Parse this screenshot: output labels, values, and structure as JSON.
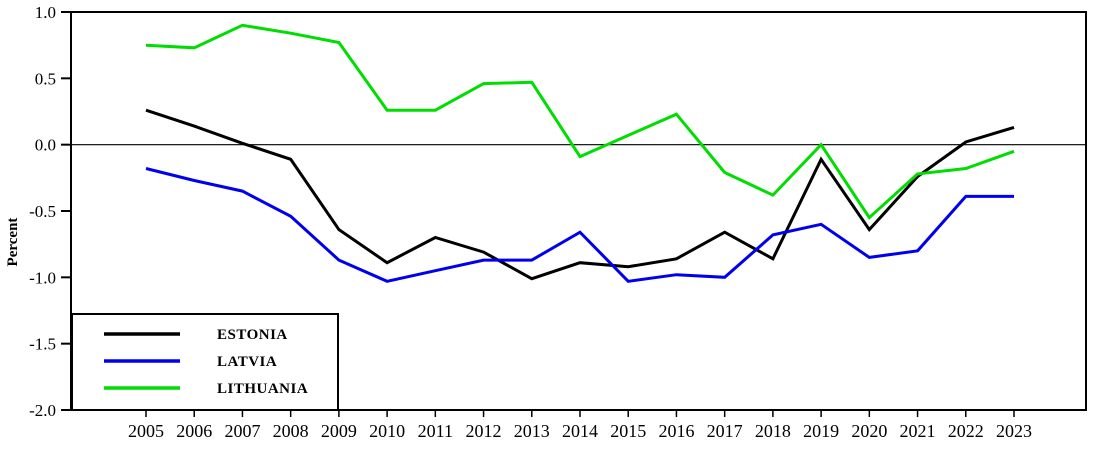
{
  "chart_data": {
    "type": "line",
    "ylabel": "Percent",
    "x_years": [
      "2005",
      "2006",
      "2007",
      "2008",
      "2009",
      "2010",
      "2011",
      "2012",
      "2013",
      "2014",
      "2015",
      "2016",
      "2017",
      "2018",
      "2019",
      "2020",
      "2021",
      "2022",
      "2023"
    ],
    "ylim": [
      -2.0,
      1.0
    ],
    "ytick_labels": [
      "1.0",
      "0.5",
      "0.0",
      "-0.5",
      "-1.0",
      "-1.5",
      "-2.0"
    ],
    "ytick_values": [
      1.0,
      0.5,
      0.0,
      -0.5,
      -1.0,
      -1.5,
      -2.0
    ],
    "zero_line": true,
    "grid": "off",
    "legend_position": "bottom-left",
    "series": [
      {
        "name": "ESTONIA",
        "color": "#000000",
        "values": [
          0.26,
          0.14,
          0.01,
          -0.11,
          -0.64,
          -0.89,
          -0.7,
          -0.81,
          -1.01,
          -0.89,
          -0.92,
          -0.86,
          -0.66,
          -0.86,
          -0.11,
          -0.64,
          -0.24,
          0.02,
          0.13
        ]
      },
      {
        "name": "LATVIA",
        "color": "#0000ee",
        "values": [
          -0.18,
          -0.27,
          -0.35,
          -0.54,
          -0.87,
          -1.03,
          -0.95,
          -0.87,
          -0.87,
          -0.66,
          -1.03,
          -0.98,
          -1.0,
          -0.68,
          -0.6,
          -0.85,
          -0.8,
          -0.39,
          -0.39
        ]
      },
      {
        "name": "LITHUANIA",
        "color": "#00dd00",
        "values": [
          0.75,
          0.73,
          0.9,
          0.84,
          0.77,
          0.26,
          0.26,
          0.46,
          0.47,
          -0.09,
          0.07,
          0.23,
          -0.21,
          -0.38,
          0.0,
          -0.55,
          -0.22,
          -0.18,
          -0.05
        ]
      }
    ]
  }
}
